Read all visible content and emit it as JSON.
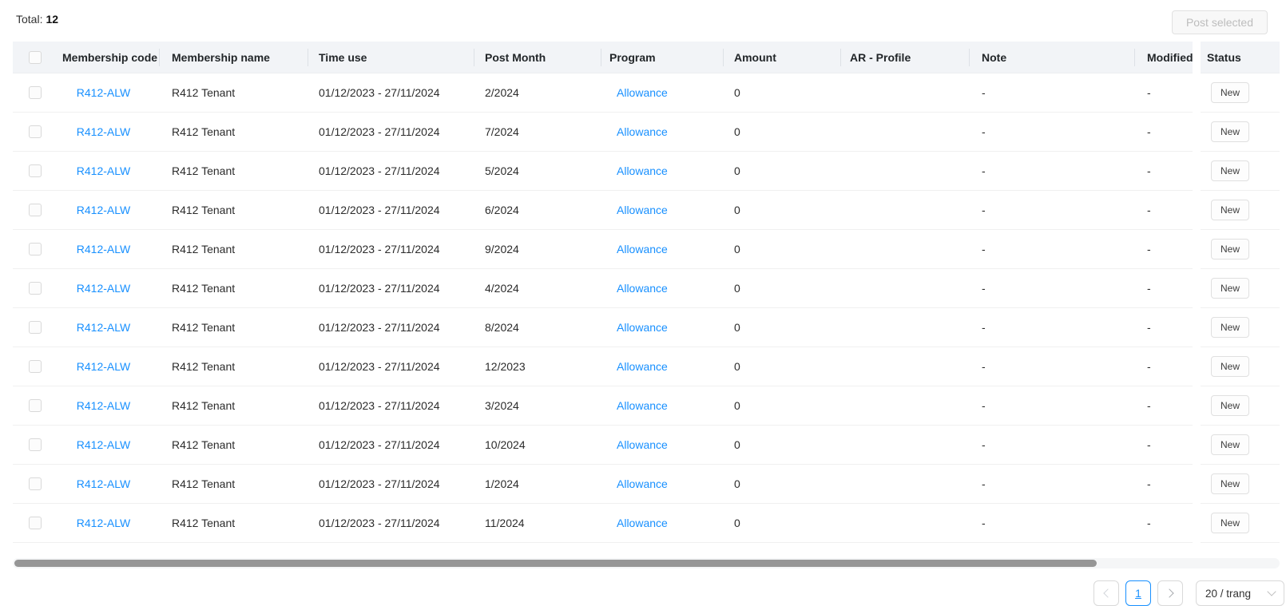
{
  "header": {
    "total_label": "Total:",
    "total_value": "12",
    "post_selected_button": "Post selected"
  },
  "table": {
    "headers": {
      "membership_code": "Membership code",
      "membership_name": "Membership name",
      "time_use": "Time use",
      "post_month": "Post Month",
      "program": "Program",
      "amount": "Amount",
      "ar_profile": "AR - Profile",
      "note": "Note",
      "modified": "Modified",
      "status": "Status"
    },
    "rows": [
      {
        "membership_code": "R412-ALW",
        "membership_name": "R412 Tenant",
        "time_use": "01/12/2023 - 27/11/2024",
        "post_month": "2/2024",
        "program": "Allowance",
        "amount": "0",
        "ar_profile": "",
        "note": "-",
        "modified": "-",
        "status": "New"
      },
      {
        "membership_code": "R412-ALW",
        "membership_name": "R412 Tenant",
        "time_use": "01/12/2023 - 27/11/2024",
        "post_month": "7/2024",
        "program": "Allowance",
        "amount": "0",
        "ar_profile": "",
        "note": "-",
        "modified": "-",
        "status": "New"
      },
      {
        "membership_code": "R412-ALW",
        "membership_name": "R412 Tenant",
        "time_use": "01/12/2023 - 27/11/2024",
        "post_month": "5/2024",
        "program": "Allowance",
        "amount": "0",
        "ar_profile": "",
        "note": "-",
        "modified": "-",
        "status": "New"
      },
      {
        "membership_code": "R412-ALW",
        "membership_name": "R412 Tenant",
        "time_use": "01/12/2023 - 27/11/2024",
        "post_month": "6/2024",
        "program": "Allowance",
        "amount": "0",
        "ar_profile": "",
        "note": "-",
        "modified": "-",
        "status": "New"
      },
      {
        "membership_code": "R412-ALW",
        "membership_name": "R412 Tenant",
        "time_use": "01/12/2023 - 27/11/2024",
        "post_month": "9/2024",
        "program": "Allowance",
        "amount": "0",
        "ar_profile": "",
        "note": "-",
        "modified": "-",
        "status": "New"
      },
      {
        "membership_code": "R412-ALW",
        "membership_name": "R412 Tenant",
        "time_use": "01/12/2023 - 27/11/2024",
        "post_month": "4/2024",
        "program": "Allowance",
        "amount": "0",
        "ar_profile": "",
        "note": "-",
        "modified": "-",
        "status": "New"
      },
      {
        "membership_code": "R412-ALW",
        "membership_name": "R412 Tenant",
        "time_use": "01/12/2023 - 27/11/2024",
        "post_month": "8/2024",
        "program": "Allowance",
        "amount": "0",
        "ar_profile": "",
        "note": "-",
        "modified": "-",
        "status": "New"
      },
      {
        "membership_code": "R412-ALW",
        "membership_name": "R412 Tenant",
        "time_use": "01/12/2023 - 27/11/2024",
        "post_month": "12/2023",
        "program": "Allowance",
        "amount": "0",
        "ar_profile": "",
        "note": "-",
        "modified": "-",
        "status": "New"
      },
      {
        "membership_code": "R412-ALW",
        "membership_name": "R412 Tenant",
        "time_use": "01/12/2023 - 27/11/2024",
        "post_month": "3/2024",
        "program": "Allowance",
        "amount": "0",
        "ar_profile": "",
        "note": "-",
        "modified": "-",
        "status": "New"
      },
      {
        "membership_code": "R412-ALW",
        "membership_name": "R412 Tenant",
        "time_use": "01/12/2023 - 27/11/2024",
        "post_month": "10/2024",
        "program": "Allowance",
        "amount": "0",
        "ar_profile": "",
        "note": "-",
        "modified": "-",
        "status": "New"
      },
      {
        "membership_code": "R412-ALW",
        "membership_name": "R412 Tenant",
        "time_use": "01/12/2023 - 27/11/2024",
        "post_month": "1/2024",
        "program": "Allowance",
        "amount": "0",
        "ar_profile": "",
        "note": "-",
        "modified": "-",
        "status": "New"
      },
      {
        "membership_code": "R412-ALW",
        "membership_name": "R412 Tenant",
        "time_use": "01/12/2023 - 27/11/2024",
        "post_month": "11/2024",
        "program": "Allowance",
        "amount": "0",
        "ar_profile": "",
        "note": "-",
        "modified": "-",
        "status": "New"
      }
    ]
  },
  "pagination": {
    "current_page": "1",
    "page_size_label": "20 / trang",
    "prev_icon": "chevron-left-icon",
    "next_icon": "chevron-right-icon",
    "dropdown_icon": "chevron-down-icon"
  },
  "colors": {
    "accent": "#1890ff",
    "header_bg": "#f2f4f7",
    "scrollbar_thumb": "#969696",
    "status_tag_border": "#e0e0e0"
  }
}
